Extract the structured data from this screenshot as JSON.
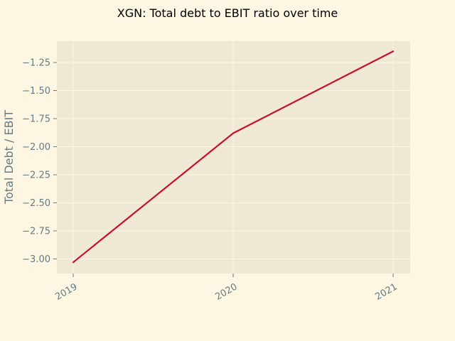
{
  "chart_data": {
    "type": "line",
    "title": "XGN: Total debt to EBIT ratio over time",
    "xlabel": "",
    "ylabel": "Total Debt / EBIT",
    "x": [
      "2019",
      "2020",
      "2021"
    ],
    "series": [
      {
        "values": [
          -3.03,
          -1.88,
          -1.15
        ],
        "color": "#c8102e"
      }
    ],
    "ylim": [
      -3.13,
      -1.06
    ],
    "yticks": [
      -1.25,
      -1.5,
      -1.75,
      -2.0,
      -2.25,
      -2.5,
      -2.75,
      -3.0
    ],
    "ytick_labels": [
      "−1.25",
      "−1.50",
      "−1.75",
      "−2.00",
      "−2.25",
      "−2.50",
      "−2.75",
      "−3.00"
    ],
    "grid": true,
    "colors": {
      "figure_background": "#fdf6e3",
      "plot_background": "#eee8d5",
      "grid": "#fdf6e3",
      "tick_text": "#657b83"
    }
  }
}
